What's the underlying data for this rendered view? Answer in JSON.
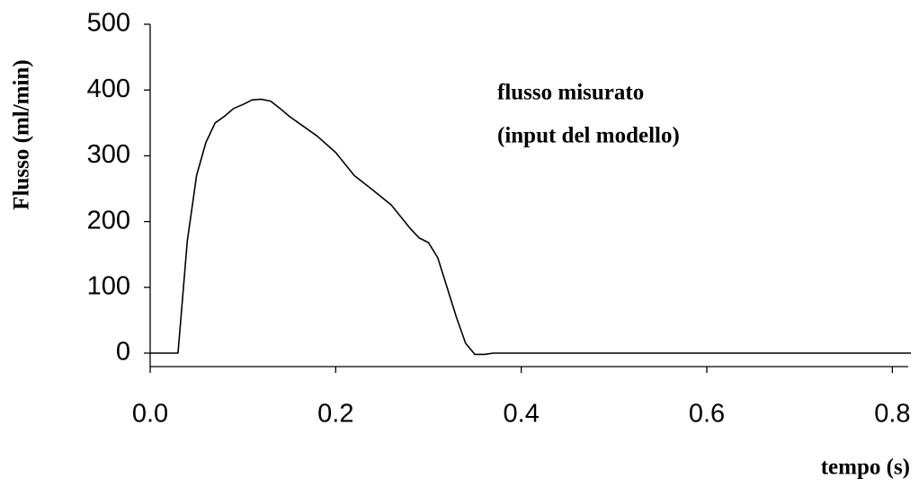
{
  "chart_data": {
    "type": "line",
    "y_label": "Flusso (ml/min)",
    "x_label": "tempo (s)",
    "annotation": [
      "flusso misurato",
      "(input del modello)"
    ],
    "color": "#000000",
    "x": [
      0,
      0.03,
      0.04,
      0.05,
      0.06,
      0.07,
      0.08,
      0.09,
      0.1,
      0.11,
      0.12,
      0.13,
      0.14,
      0.15,
      0.16,
      0.18,
      0.2,
      0.22,
      0.24,
      0.26,
      0.28,
      0.29,
      0.3,
      0.31,
      0.32,
      0.33,
      0.34,
      0.35,
      0.36,
      0.37,
      0.82
    ],
    "values": [
      0,
      0,
      170,
      270,
      320,
      350,
      360,
      372,
      378,
      385,
      386,
      383,
      372,
      360,
      350,
      330,
      305,
      270,
      248,
      225,
      190,
      175,
      168,
      145,
      100,
      55,
      15,
      -2,
      -2,
      0,
      0
    ],
    "xlim": [
      0,
      0.82
    ],
    "xticks": [
      {
        "value": 0,
        "label": "0.0"
      },
      0.2,
      0.4,
      0.6,
      0.8
    ],
    "ylim": [
      -20,
      500
    ],
    "yticks": [
      0,
      100,
      200,
      300,
      400,
      500
    ]
  }
}
